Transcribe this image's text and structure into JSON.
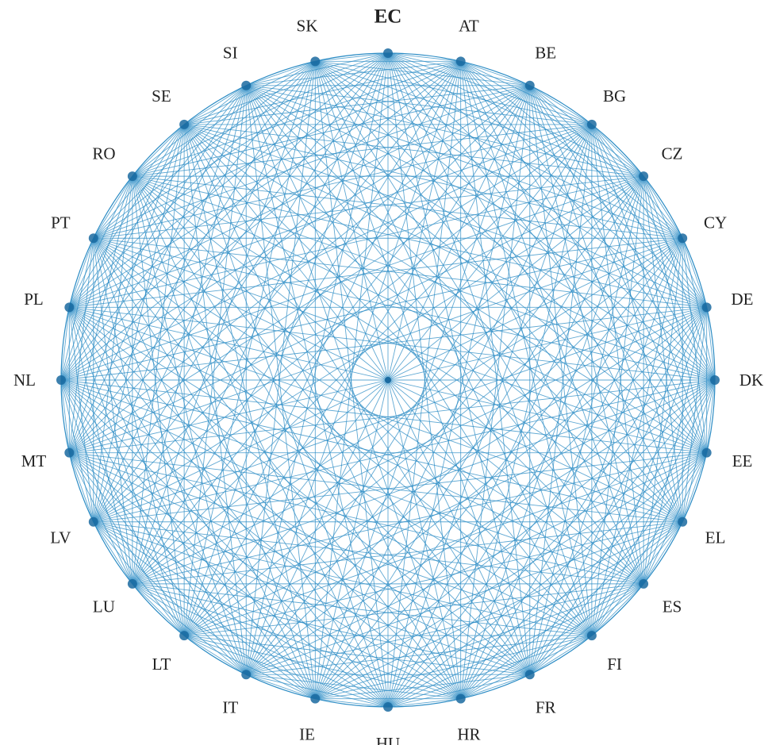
{
  "diagram": {
    "type": "complete-graph-circular",
    "nodes": [
      "EC",
      "AT",
      "BE",
      "BG",
      "CZ",
      "CY",
      "DE",
      "DK",
      "EE",
      "EL",
      "ES",
      "FI",
      "FR",
      "HR",
      "HU",
      "IE",
      "IT",
      "LT",
      "LU",
      "LV",
      "MT",
      "NL",
      "PL",
      "PT",
      "RO",
      "SE",
      "SI",
      "SK"
    ],
    "emphasized_node": "EC",
    "all_pairs_connected": true,
    "edge_color": "#2a8bc4",
    "node_color": "#1a6aa0",
    "label_color": "#222222"
  }
}
